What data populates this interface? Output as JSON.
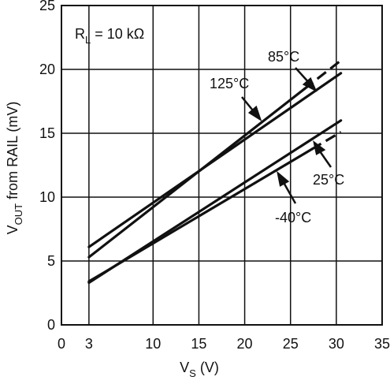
{
  "chart_data": {
    "type": "line",
    "title": "",
    "xlabel_main": "V",
    "xlabel_sub": "S",
    "xlabel_tail": " (V)",
    "ylabel_main": "V",
    "ylabel_sub": "OUT",
    "ylabel_tail": " from RAIL (mV)",
    "xlim": [
      0,
      35
    ],
    "ylim": [
      0,
      25
    ],
    "xticks": [
      0,
      3,
      10,
      15,
      20,
      25,
      30,
      35
    ],
    "yticks": [
      0,
      5,
      10,
      15,
      20,
      25
    ],
    "xgrid": [
      3,
      10,
      15,
      20,
      25,
      30
    ],
    "ygrid": [
      5,
      10,
      15,
      20
    ],
    "grid": true,
    "annotation_rl_main": "R",
    "annotation_rl_sub": "L",
    "annotation_rl_tail": " = 10 kΩ",
    "series": [
      {
        "name": "85°C",
        "x": [
          3,
          30.5
        ],
        "y": [
          5.3,
          20.7
        ],
        "dash_from_x": 26.5
      },
      {
        "name": "125°C",
        "x": [
          3,
          30.5
        ],
        "y": [
          6.1,
          19.7
        ]
      },
      {
        "name": "25°C",
        "x": [
          3,
          30.5
        ],
        "y": [
          3.4,
          15.1
        ],
        "dash_from_x": 27.3
      },
      {
        "name": "-40°C",
        "x": [
          3,
          30.5
        ],
        "y": [
          3.3,
          16.0
        ]
      }
    ]
  }
}
